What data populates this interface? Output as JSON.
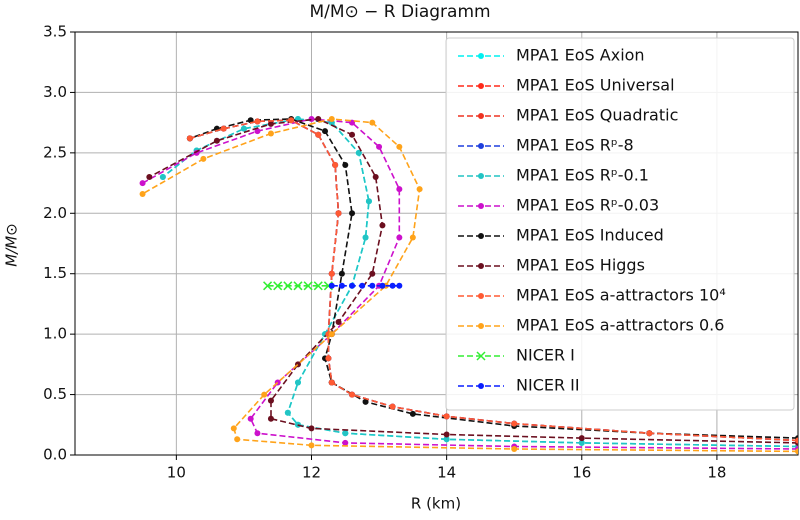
{
  "chart_data": {
    "type": "line",
    "title": "M/M⊙ − R Diagramm",
    "xlabel": "R (km)",
    "ylabel": "M/M⊙",
    "xlim": [
      8.5,
      19.2
    ],
    "ylim": [
      0,
      3.5
    ],
    "xticks": [
      10,
      12,
      14,
      16,
      18
    ],
    "yticks": [
      {
        "value": 0,
        "label": "0.0"
      },
      0.5,
      {
        "value": 1,
        "label": "1.0"
      },
      1.5,
      {
        "value": 2,
        "label": "2.0"
      },
      2.5,
      {
        "value": 3,
        "label": "3.0"
      },
      3.5
    ],
    "grid": true,
    "legend": "upper right",
    "series": [
      {
        "name": "MPA1 EoS Axion",
        "color": "#00f0f0",
        "marker": "o",
        "x": [
          19.2,
          16,
          14,
          12.5,
          11.8,
          11.65,
          11.8,
          12.2,
          12.6,
          12.8,
          12.85,
          12.7,
          12.3,
          11.8,
          11,
          10.3,
          9.8
        ],
        "values": [
          0.07,
          0.1,
          0.13,
          0.18,
          0.25,
          0.35,
          0.6,
          1.0,
          1.4,
          1.8,
          2.1,
          2.5,
          2.75,
          2.78,
          2.7,
          2.52,
          2.3
        ]
      },
      {
        "name": "MPA1 EoS Universal",
        "color": "#ff2a1a",
        "marker": "o",
        "x": [
          19.2,
          17,
          15,
          14,
          13.2,
          12.6,
          12.3,
          12.25,
          12.25,
          12.3,
          12.4,
          12.35,
          12.1,
          11.7,
          11.2,
          10.7,
          10.2
        ],
        "values": [
          0.12,
          0.18,
          0.26,
          0.32,
          0.4,
          0.5,
          0.6,
          0.8,
          1.0,
          1.5,
          2.0,
          2.4,
          2.65,
          2.77,
          2.76,
          2.7,
          2.62
        ]
      },
      {
        "name": "MPA1 EoS Quadratic",
        "color": "#ee3322",
        "marker": "o",
        "x": [
          19.2,
          17,
          15,
          14,
          13.2,
          12.6,
          12.3,
          12.25,
          12.25,
          12.3,
          12.4,
          12.35,
          12.1,
          11.7,
          11.2,
          10.7,
          10.2
        ],
        "values": [
          0.12,
          0.18,
          0.26,
          0.32,
          0.4,
          0.5,
          0.6,
          0.8,
          1.0,
          1.5,
          2.0,
          2.4,
          2.65,
          2.77,
          2.76,
          2.7,
          2.62
        ]
      },
      {
        "name": "MPA1 EoS Rᵖ-8",
        "color": "#1f3fdd",
        "marker": "o",
        "x": [
          19.2,
          17,
          15,
          14,
          13.2,
          12.6,
          12.3,
          12.25,
          12.25,
          12.3,
          12.4,
          12.35,
          12.1,
          11.7,
          11.2,
          10.7,
          10.2
        ],
        "values": [
          0.12,
          0.18,
          0.26,
          0.32,
          0.4,
          0.5,
          0.6,
          0.8,
          1.0,
          1.5,
          2.0,
          2.4,
          2.65,
          2.77,
          2.76,
          2.7,
          2.62
        ]
      },
      {
        "name": "MPA1 EoS Rᵖ-0.1",
        "color": "#22c4c4",
        "marker": "o",
        "x": [
          19.2,
          16,
          14,
          12.5,
          11.8,
          11.65,
          11.8,
          12.2,
          12.6,
          12.8,
          12.85,
          12.7,
          12.3,
          11.8,
          11,
          10.3,
          9.8
        ],
        "values": [
          0.07,
          0.1,
          0.13,
          0.18,
          0.25,
          0.35,
          0.6,
          1.0,
          1.4,
          1.8,
          2.1,
          2.5,
          2.75,
          2.78,
          2.7,
          2.52,
          2.3
        ]
      },
      {
        "name": "MPA1 EoS Rᵖ-0.03",
        "color": "#cc11cc",
        "marker": "o",
        "x": [
          19.2,
          15,
          12.5,
          11.2,
          11.1,
          11.5,
          12.3,
          13,
          13.3,
          13.3,
          13,
          12.6,
          12,
          11.2,
          10.3,
          9.5
        ],
        "values": [
          0.05,
          0.07,
          0.1,
          0.18,
          0.3,
          0.6,
          1.0,
          1.4,
          1.8,
          2.2,
          2.55,
          2.75,
          2.78,
          2.68,
          2.5,
          2.25
        ]
      },
      {
        "name": "MPA1 EoS Induced",
        "color": "#111111",
        "marker": "o",
        "x": [
          19.2,
          17,
          15,
          13.5,
          12.8,
          12.3,
          12.2,
          12.3,
          12.45,
          12.6,
          12.5,
          12.2,
          11.7,
          11.1,
          10.6,
          10.2
        ],
        "values": [
          0.14,
          0.18,
          0.24,
          0.34,
          0.44,
          0.6,
          0.8,
          1.0,
          1.5,
          2.0,
          2.4,
          2.68,
          2.78,
          2.77,
          2.7,
          2.62
        ]
      },
      {
        "name": "MPA1 EoS Higgs",
        "color": "#6b0f1f",
        "marker": "o",
        "x": [
          19.2,
          16,
          14,
          12,
          11.4,
          11.4,
          11.8,
          12.4,
          12.9,
          13.05,
          12.95,
          12.6,
          12.1,
          11.4,
          10.6,
          9.6
        ],
        "values": [
          0.1,
          0.14,
          0.17,
          0.22,
          0.3,
          0.45,
          0.75,
          1.1,
          1.5,
          1.9,
          2.3,
          2.65,
          2.78,
          2.74,
          2.6,
          2.3
        ]
      },
      {
        "name": "MPA1 EoS a-attractors 10⁴",
        "color": "#ff5a33",
        "marker": "o",
        "x": [
          19.2,
          17,
          15,
          14,
          13.2,
          12.6,
          12.3,
          12.25,
          12.25,
          12.3,
          12.4,
          12.35,
          12.1,
          11.7,
          11.2,
          10.7,
          10.2
        ],
        "values": [
          0.12,
          0.18,
          0.26,
          0.32,
          0.4,
          0.5,
          0.6,
          0.8,
          1.0,
          1.5,
          2.0,
          2.4,
          2.65,
          2.77,
          2.76,
          2.7,
          2.62
        ]
      },
      {
        "name": "MPA1 EoS a-attractors 0.6",
        "color": "#ffa31a",
        "marker": "o",
        "x": [
          19.2,
          15,
          12,
          10.9,
          10.85,
          11.3,
          12.3,
          13.1,
          13.5,
          13.6,
          13.3,
          12.9,
          12.3,
          11.4,
          10.4,
          9.5
        ],
        "values": [
          0.03,
          0.05,
          0.08,
          0.13,
          0.22,
          0.5,
          1.0,
          1.4,
          1.8,
          2.2,
          2.55,
          2.75,
          2.78,
          2.66,
          2.45,
          2.16
        ]
      },
      {
        "name": "NICER I",
        "color": "#33ee33",
        "marker": "x",
        "x": [
          11.35,
          11.5,
          11.65,
          11.8,
          11.95,
          12.1,
          12.25
        ],
        "values": [
          1.4,
          1.4,
          1.4,
          1.4,
          1.4,
          1.4,
          1.4
        ]
      },
      {
        "name": "NICER II",
        "color": "#0a1fff",
        "marker": "o",
        "x": [
          12.3,
          12.45,
          12.6,
          12.75,
          12.9,
          13.05,
          13.2,
          13.3
        ],
        "values": [
          1.4,
          1.4,
          1.4,
          1.4,
          1.4,
          1.4,
          1.4,
          1.4
        ]
      }
    ]
  }
}
